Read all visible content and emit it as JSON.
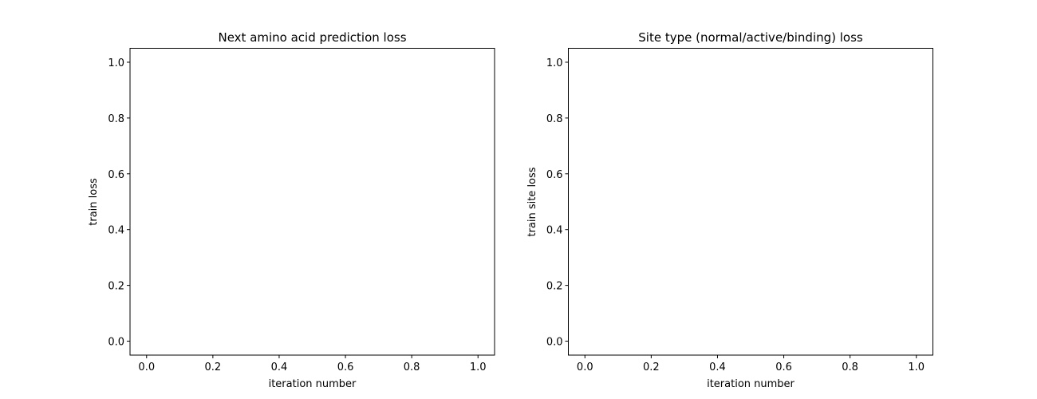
{
  "chart_data": [
    {
      "type": "line",
      "title": "Next amino acid prediction loss",
      "xlabel": "iteration number",
      "ylabel": "train loss",
      "xlim": [
        -0.05,
        1.05
      ],
      "ylim": [
        -0.05,
        1.05
      ],
      "xticks": [
        0.0,
        0.2,
        0.4,
        0.6,
        0.8,
        1.0
      ],
      "yticks": [
        0.0,
        0.2,
        0.4,
        0.6,
        0.8,
        1.0
      ],
      "xtick_labels": [
        "0.0",
        "0.2",
        "0.4",
        "0.6",
        "0.8",
        "1.0"
      ],
      "ytick_labels": [
        "0.0",
        "0.2",
        "0.4",
        "0.6",
        "0.8",
        "1.0"
      ],
      "grid": false,
      "series": []
    },
    {
      "type": "line",
      "title": "Site type (normal/active/binding) loss",
      "xlabel": "iteration number",
      "ylabel": "train site loss",
      "xlim": [
        -0.05,
        1.05
      ],
      "ylim": [
        -0.05,
        1.05
      ],
      "xticks": [
        0.0,
        0.2,
        0.4,
        0.6,
        0.8,
        1.0
      ],
      "yticks": [
        0.0,
        0.2,
        0.4,
        0.6,
        0.8,
        1.0
      ],
      "xtick_labels": [
        "0.0",
        "0.2",
        "0.4",
        "0.6",
        "0.8",
        "1.0"
      ],
      "ytick_labels": [
        "0.0",
        "0.2",
        "0.4",
        "0.6",
        "0.8",
        "1.0"
      ],
      "grid": false,
      "series": []
    }
  ]
}
